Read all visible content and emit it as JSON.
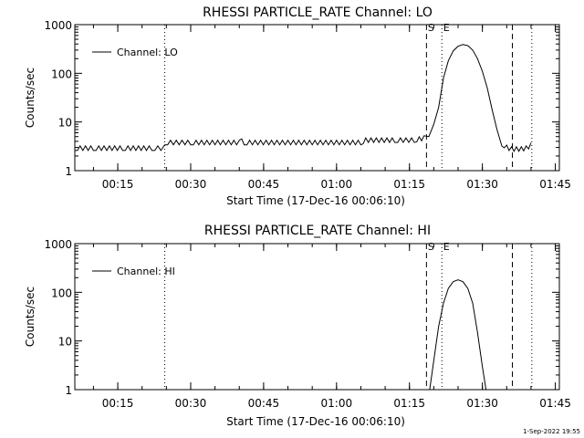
{
  "footer_stamp": "1-Sep-2022 19:55",
  "chart_data": [
    {
      "type": "line",
      "title": "RHESSI PARTICLE_RATE Channel: LO",
      "xlabel": "Start Time (17-Dec-16 00:06:10)",
      "ylabel": "Counts/sec",
      "yscale": "log",
      "ylim": [
        1,
        1000
      ],
      "xlim": [
        "00:06:10",
        "01:45:50"
      ],
      "x_ticks": [
        "00:15",
        "00:30",
        "00:45",
        "01:00",
        "01:15",
        "01:30",
        "01:45"
      ],
      "y_ticks": [
        "1",
        "10",
        "100",
        "1000"
      ],
      "legend": "top-left",
      "series": [
        {
          "name": "Channel: LO",
          "x": [
            "00:06:10",
            "00:10:00",
            "00:16:00",
            "00:22:00",
            "00:24:30",
            "00:24:40",
            "00:30:00",
            "00:40:00",
            "00:40:30",
            "00:41:00",
            "00:50:00",
            "01:00:00",
            "01:05:00",
            "01:06:00",
            "01:12:00",
            "01:16:00",
            "01:18:00",
            "01:19:00",
            "01:20:00",
            "01:21:00",
            "01:22:00",
            "01:23:00",
            "01:24:00",
            "01:25:00",
            "01:26:00",
            "01:27:00",
            "01:28:00",
            "01:29:00",
            "01:30:00",
            "01:31:00",
            "01:32:00",
            "01:33:00",
            "01:34:00",
            "01:35:00",
            "01:36:00",
            "01:37:00",
            "01:38:00",
            "01:39:00",
            "01:40:00"
          ],
          "y": [
            2.6,
            2.6,
            2.6,
            2.6,
            2.6,
            3.4,
            3.4,
            3.4,
            4.5,
            3.4,
            3.4,
            3.4,
            3.4,
            3.8,
            3.8,
            3.8,
            4.2,
            5,
            9,
            20,
            80,
            180,
            290,
            360,
            390,
            370,
            300,
            200,
            110,
            50,
            18,
            7,
            3.2,
            2.7,
            2.5,
            2.5,
            2.5,
            2.6,
            3.0
          ]
        }
      ],
      "markers": [
        {
          "style": "dotted",
          "x": "00:24:40",
          "label": ""
        },
        {
          "style": "dashed",
          "x": "01:18:30",
          "label": "S"
        },
        {
          "style": "dotted",
          "x": "01:21:40",
          "label": "E"
        },
        {
          "style": "dashed",
          "x": "01:36:10",
          "label": ""
        },
        {
          "style": "dotted",
          "x": "01:40:10",
          "label": ""
        }
      ]
    },
    {
      "type": "line",
      "title": "RHESSI PARTICLE_RATE Channel: HI",
      "xlabel": "Start Time (17-Dec-16 00:06:10)",
      "ylabel": "Counts/sec",
      "yscale": "log",
      "ylim": [
        1,
        1000
      ],
      "xlim": [
        "00:06:10",
        "01:45:50"
      ],
      "x_ticks": [
        "00:15",
        "00:30",
        "00:45",
        "01:00",
        "01:15",
        "01:30",
        "01:45"
      ],
      "y_ticks": [
        "1",
        "10",
        "100",
        "1000"
      ],
      "legend": "top-left",
      "series": [
        {
          "name": "Channel: HI",
          "x": [
            "01:19:10",
            "01:20:00",
            "01:21:00",
            "01:22:00",
            "01:23:00",
            "01:24:00",
            "01:25:00",
            "01:26:00",
            "01:27:00",
            "01:28:00",
            "01:29:00",
            "01:30:00",
            "01:30:45"
          ],
          "y": [
            1,
            4,
            20,
            60,
            120,
            165,
            180,
            165,
            120,
            60,
            15,
            3,
            1
          ]
        }
      ],
      "markers": [
        {
          "style": "dotted",
          "x": "00:24:40",
          "label": ""
        },
        {
          "style": "dashed",
          "x": "01:18:30",
          "label": "S"
        },
        {
          "style": "dotted",
          "x": "01:21:40",
          "label": "E"
        },
        {
          "style": "dashed",
          "x": "01:36:10",
          "label": ""
        },
        {
          "style": "dotted",
          "x": "01:40:10",
          "label": ""
        }
      ]
    }
  ]
}
